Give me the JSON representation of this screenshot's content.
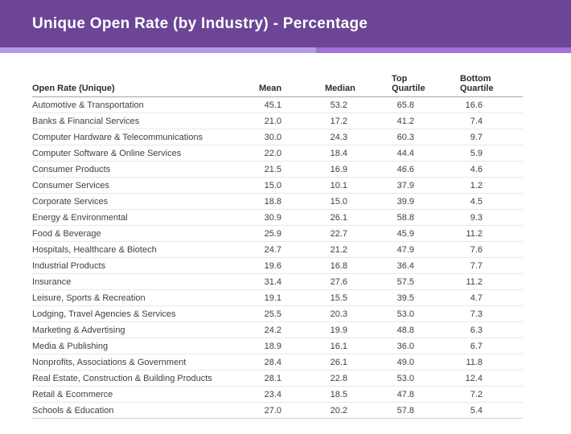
{
  "title_bar": {
    "title": "Unique Open Rate (by Industry) - Percentage",
    "background_color": "#6c4596",
    "strip_left_color": "#b39be4",
    "strip_right_color": "#a471d6"
  },
  "chart_data": {
    "type": "table",
    "title": "Unique Open Rate (by Industry) - Percentage",
    "columns": [
      "Open Rate (Unique)",
      "Mean",
      "Median",
      "Top Quartile",
      "Bottom Quartile"
    ],
    "rows": [
      {
        "industry": "Automotive & Transportation",
        "mean": "45.1",
        "median": "53.2",
        "top_quartile": "65.8",
        "bottom_quartile": "16.6"
      },
      {
        "industry": "Banks & Financial Services",
        "mean": "21.0",
        "median": "17.2",
        "top_quartile": "41.2",
        "bottom_quartile": "7.4"
      },
      {
        "industry": "Computer Hardware & Telecommunications",
        "mean": "30.0",
        "median": "24.3",
        "top_quartile": "60.3",
        "bottom_quartile": "9.7"
      },
      {
        "industry": "Computer Software & Online Services",
        "mean": "22.0",
        "median": "18.4",
        "top_quartile": "44.4",
        "bottom_quartile": "5.9"
      },
      {
        "industry": "Consumer Products",
        "mean": "21.5",
        "median": "16.9",
        "top_quartile": "46.6",
        "bottom_quartile": "4.6"
      },
      {
        "industry": "Consumer Services",
        "mean": "15.0",
        "median": "10.1",
        "top_quartile": "37.9",
        "bottom_quartile": "1.2"
      },
      {
        "industry": "Corporate Services",
        "mean": "18.8",
        "median": "15.0",
        "top_quartile": "39.9",
        "bottom_quartile": "4.5"
      },
      {
        "industry": "Energy & Environmental",
        "mean": "30.9",
        "median": "26.1",
        "top_quartile": "58.8",
        "bottom_quartile": "9.3"
      },
      {
        "industry": "Food & Beverage",
        "mean": "25.9",
        "median": "22.7",
        "top_quartile": "45.9",
        "bottom_quartile": "11.2"
      },
      {
        "industry": "Hospitals, Healthcare & Biotech",
        "mean": "24.7",
        "median": "21.2",
        "top_quartile": "47.9",
        "bottom_quartile": "7.6"
      },
      {
        "industry": "Industrial Products",
        "mean": "19.6",
        "median": "16.8",
        "top_quartile": "36.4",
        "bottom_quartile": "7.7"
      },
      {
        "industry": "Insurance",
        "mean": "31.4",
        "median": "27.6",
        "top_quartile": "57.5",
        "bottom_quartile": "11.2"
      },
      {
        "industry": "Leisure, Sports & Recreation",
        "mean": "19.1",
        "median": "15.5",
        "top_quartile": "39.5",
        "bottom_quartile": "4.7"
      },
      {
        "industry": "Lodging, Travel Agencies & Services",
        "mean": "25.5",
        "median": "20.3",
        "top_quartile": "53.0",
        "bottom_quartile": "7.3"
      },
      {
        "industry": "Marketing & Advertising",
        "mean": "24.2",
        "median": "19.9",
        "top_quartile": "48.8",
        "bottom_quartile": "6.3"
      },
      {
        "industry": "Media & Publishing",
        "mean": "18.9",
        "median": "16.1",
        "top_quartile": "36.0",
        "bottom_quartile": "6.7"
      },
      {
        "industry": "Nonprofits, Associations & Government",
        "mean": "28.4",
        "median": "26.1",
        "top_quartile": "49.0",
        "bottom_quartile": "11.8"
      },
      {
        "industry": "Real Estate, Construction & Building Products",
        "mean": "28.1",
        "median": "22.8",
        "top_quartile": "53.0",
        "bottom_quartile": "12.4"
      },
      {
        "industry": "Retail & Ecommerce",
        "mean": "23.4",
        "median": "18.5",
        "top_quartile": "47.8",
        "bottom_quartile": "7.2"
      },
      {
        "industry": "Schools & Education",
        "mean": "27.0",
        "median": "20.2",
        "top_quartile": "57.8",
        "bottom_quartile": "5.4"
      }
    ]
  }
}
